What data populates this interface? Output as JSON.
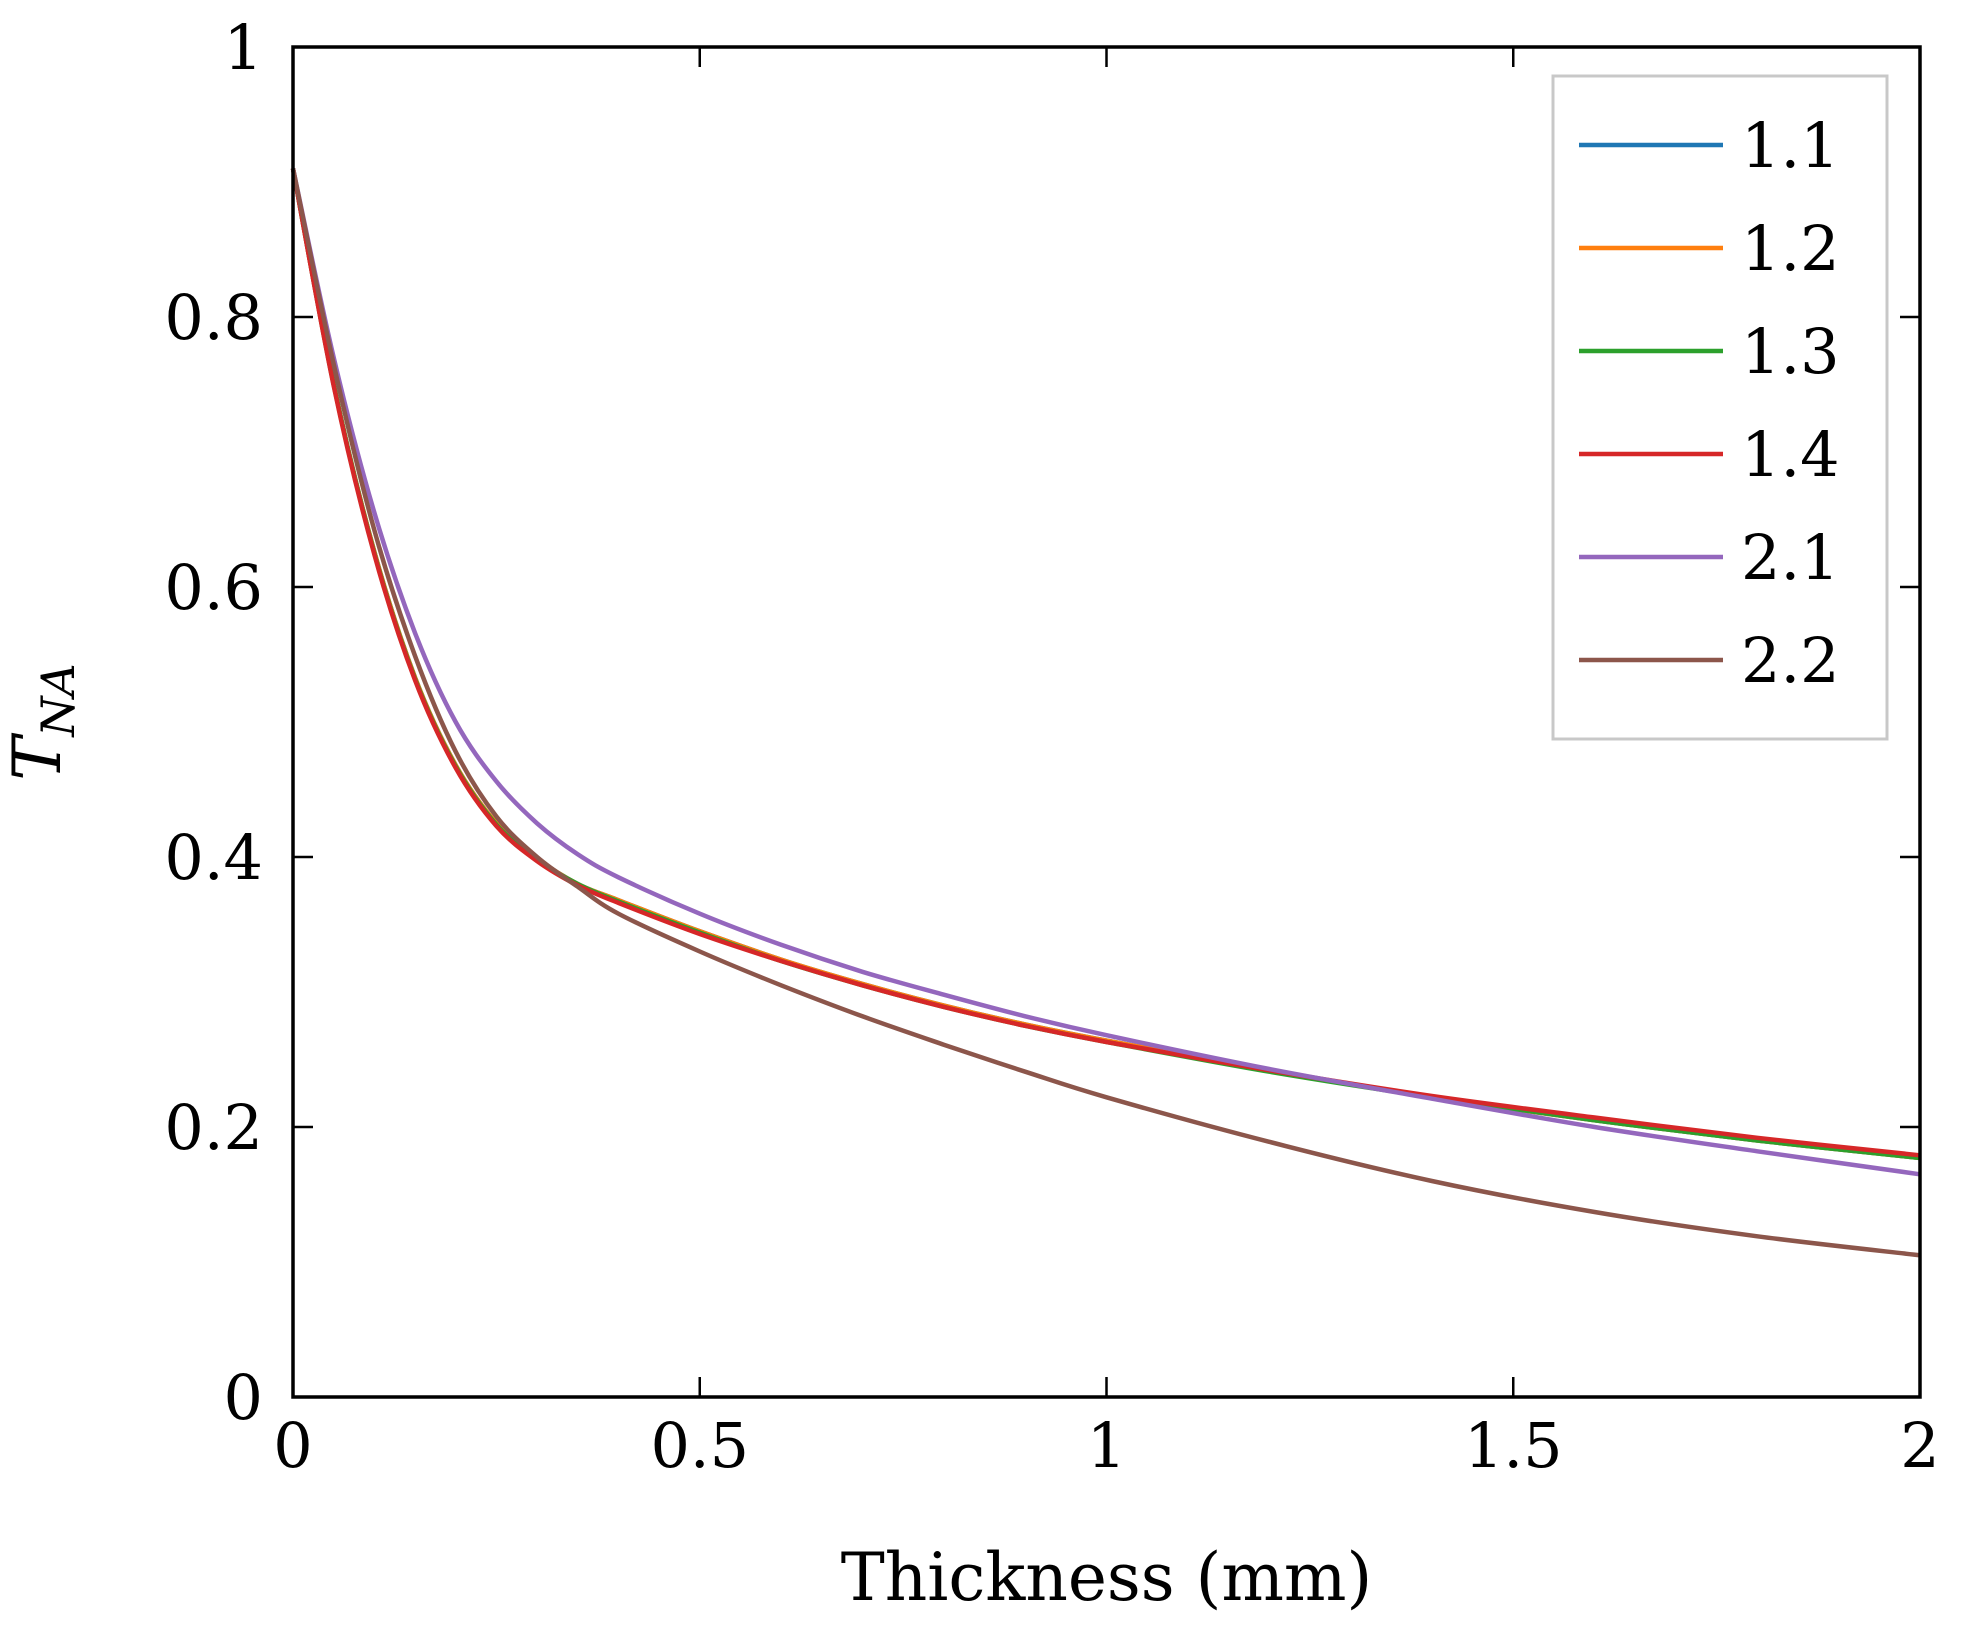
{
  "chart_data": {
    "type": "line",
    "title": "",
    "xlabel": "Thickness (mm)",
    "ylabel": {
      "main": "T",
      "subscript": "NA"
    },
    "xlim": [
      0,
      2
    ],
    "ylim": [
      0,
      1
    ],
    "xticks": [
      0,
      0.5,
      1,
      1.5,
      2
    ],
    "xtick_labels": [
      "0",
      "0.5",
      "1",
      "1.5",
      "2"
    ],
    "yticks": [
      0,
      0.2,
      0.4,
      0.6,
      0.8,
      1
    ],
    "ytick_labels": [
      "0",
      "0.2",
      "0.4",
      "0.6",
      "0.8",
      "1"
    ],
    "grid": false,
    "legend_position": "top-right",
    "x": [
      0,
      0.05,
      0.1,
      0.15,
      0.2,
      0.25,
      0.3,
      0.35,
      0.4,
      0.5,
      0.6,
      0.7,
      0.8,
      0.9,
      1.0,
      1.2,
      1.4,
      1.6,
      1.8,
      2.0
    ],
    "series": [
      {
        "name": "1.1",
        "color": "#1f77b4",
        "values": [
          0.91,
          0.75,
          0.626,
          0.533,
          0.468,
          0.425,
          0.399,
          0.38,
          0.368,
          0.345,
          0.324,
          0.306,
          0.29,
          0.276,
          0.264,
          0.242,
          0.222,
          0.205,
          0.19,
          0.177
        ]
      },
      {
        "name": "1.2",
        "color": "#ff7f0e",
        "values": [
          0.91,
          0.75,
          0.626,
          0.533,
          0.468,
          0.425,
          0.399,
          0.38,
          0.368,
          0.345,
          0.324,
          0.306,
          0.29,
          0.276,
          0.264,
          0.242,
          0.222,
          0.205,
          0.19,
          0.177
        ]
      },
      {
        "name": "1.3",
        "color": "#2ca02c",
        "values": [
          0.91,
          0.75,
          0.625,
          0.532,
          0.467,
          0.424,
          0.398,
          0.38,
          0.367,
          0.344,
          0.323,
          0.305,
          0.289,
          0.275,
          0.263,
          0.241,
          0.222,
          0.205,
          0.19,
          0.177
        ]
      },
      {
        "name": "1.4",
        "color": "#d62728",
        "values": [
          0.91,
          0.749,
          0.624,
          0.531,
          0.466,
          0.423,
          0.397,
          0.379,
          0.366,
          0.343,
          0.323,
          0.305,
          0.289,
          0.275,
          0.263,
          0.242,
          0.223,
          0.207,
          0.192,
          0.179
        ]
      },
      {
        "name": "2.1",
        "color": "#9467bd",
        "values": [
          0.91,
          0.77,
          0.655,
          0.566,
          0.5,
          0.456,
          0.425,
          0.402,
          0.385,
          0.358,
          0.335,
          0.315,
          0.298,
          0.282,
          0.268,
          0.243,
          0.221,
          0.2,
          0.182,
          0.165
        ]
      },
      {
        "name": "2.2",
        "color": "#8c564b",
        "values": [
          0.91,
          0.765,
          0.642,
          0.549,
          0.478,
          0.43,
          0.4,
          0.378,
          0.358,
          0.33,
          0.305,
          0.282,
          0.261,
          0.241,
          0.222,
          0.189,
          0.16,
          0.137,
          0.119,
          0.105
        ]
      }
    ]
  }
}
